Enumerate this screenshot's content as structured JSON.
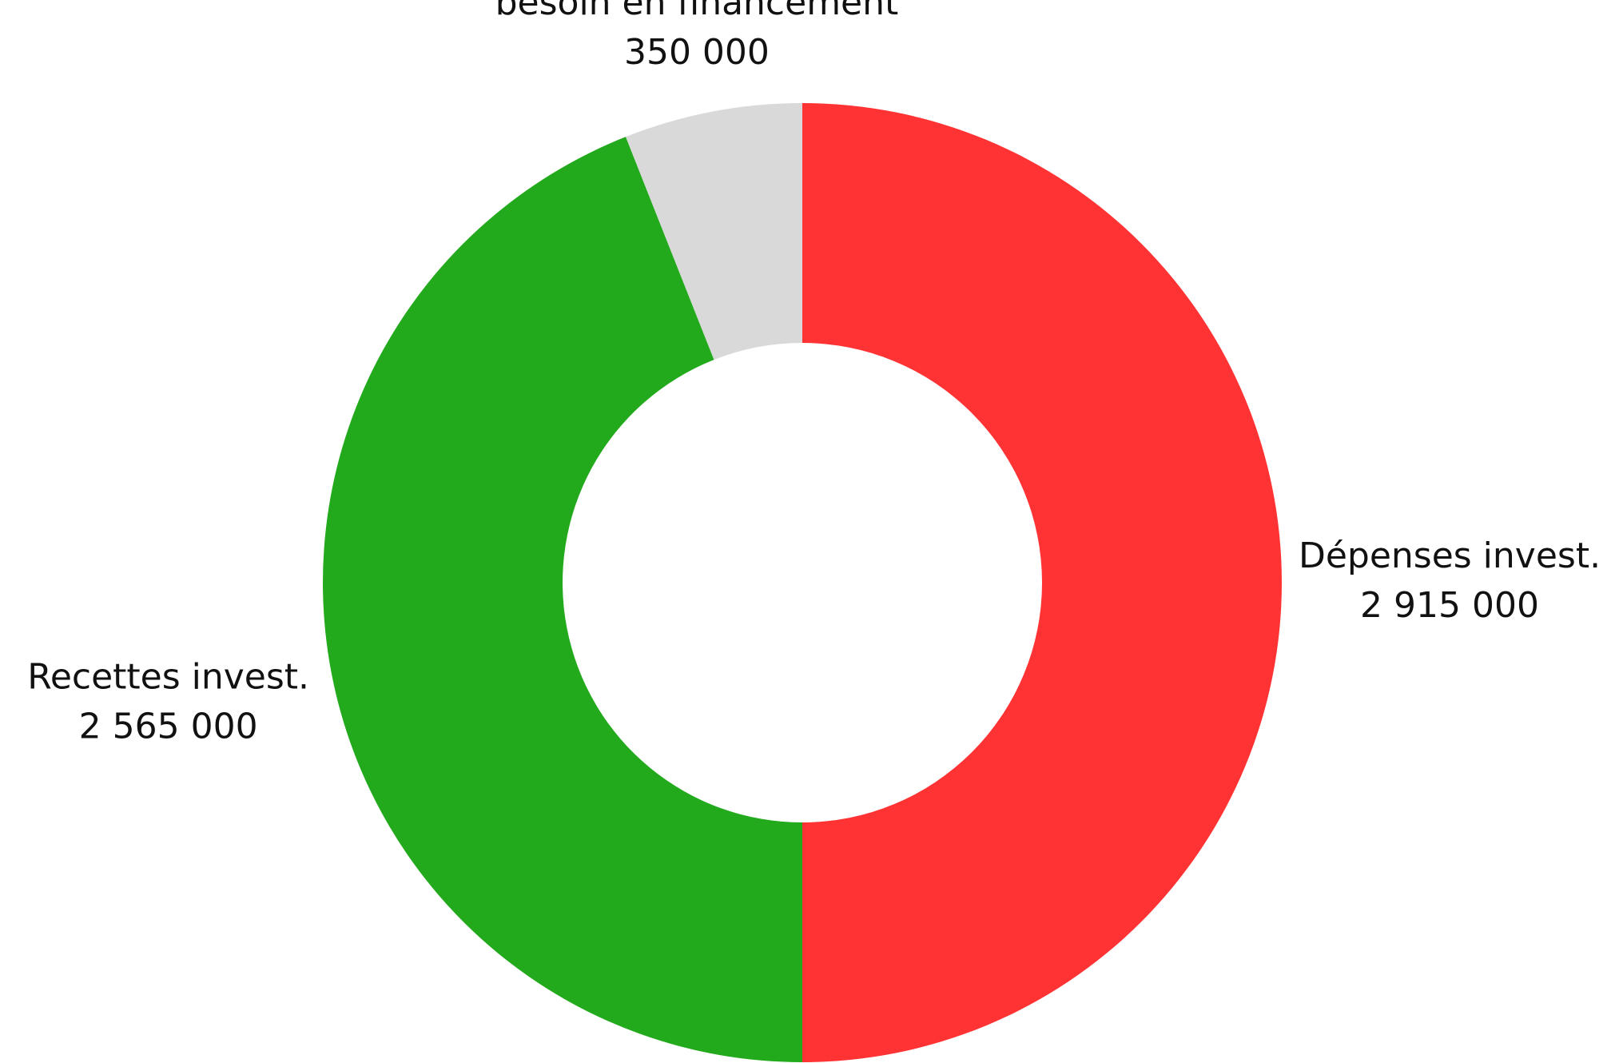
{
  "chart_data": {
    "type": "donut",
    "categories": [
      "Dépenses invest.",
      "Recettes invest.",
      "besoin en financement"
    ],
    "values": [
      2915000,
      2565000,
      350000
    ],
    "value_labels": [
      "2 915 000",
      "2 565 000",
      "350 000"
    ],
    "colors": [
      "#ff3333",
      "#22aa1c",
      "#d9d9d9"
    ]
  }
}
